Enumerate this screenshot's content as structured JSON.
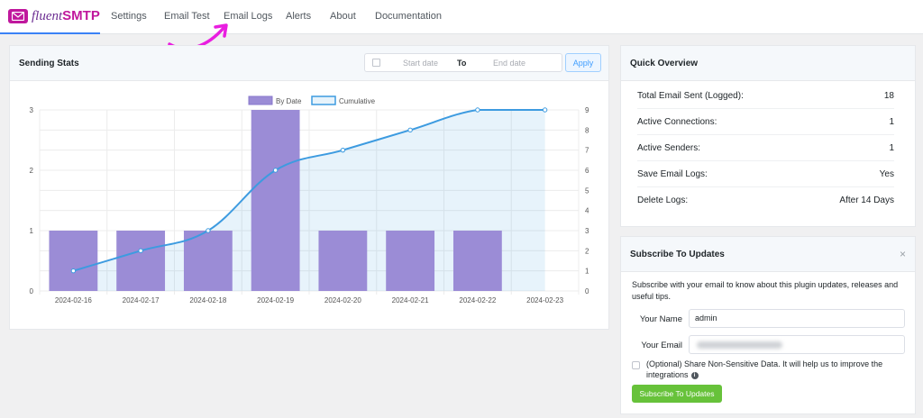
{
  "brand": {
    "name_light": "fluent",
    "name_bold": "SMTP",
    "color": "#c0189d"
  },
  "nav": {
    "items": [
      {
        "label": "Settings"
      },
      {
        "label": "Email Test"
      },
      {
        "label": "Email Logs"
      },
      {
        "label": "Alerts"
      },
      {
        "label": "About"
      },
      {
        "label": "Documentation"
      }
    ]
  },
  "sending_stats": {
    "title": "Sending Stats",
    "date_start_placeholder": "Start date",
    "date_separator": "To",
    "date_end_placeholder": "End date",
    "apply_label": "Apply"
  },
  "chart_data": {
    "type": "bar",
    "categories": [
      "2024-02-16",
      "2024-02-17",
      "2024-02-18",
      "2024-02-19",
      "2024-02-20",
      "2024-02-21",
      "2024-02-22",
      "2024-02-23"
    ],
    "series": [
      {
        "name": "By Date",
        "type": "bar",
        "axis": "left",
        "values": [
          1,
          1,
          1,
          3,
          1,
          1,
          1,
          0
        ],
        "color": "#9b8cd6"
      },
      {
        "name": "Cumulative",
        "type": "line",
        "axis": "right",
        "values": [
          1,
          2,
          3,
          6,
          7,
          8,
          9,
          9
        ],
        "color": "#3d9be0"
      }
    ],
    "ylim_left": [
      0,
      3
    ],
    "yticks_left": [
      "0",
      "1",
      "2",
      "3"
    ],
    "ylim_right": [
      0,
      9
    ],
    "yticks_right": [
      "0",
      "1",
      "2",
      "3",
      "4",
      "5",
      "6",
      "7",
      "8",
      "9"
    ],
    "legend_position": "top",
    "grid": true
  },
  "quick_overview": {
    "title": "Quick Overview",
    "rows": [
      {
        "label": "Total Email Sent (Logged):",
        "value": "18"
      },
      {
        "label": "Active Connections:",
        "value": "1"
      },
      {
        "label": "Active Senders:",
        "value": "1"
      },
      {
        "label": "Save Email Logs:",
        "value": "Yes"
      },
      {
        "label": "Delete Logs:",
        "value": "After 14 Days"
      }
    ]
  },
  "subscribe": {
    "title": "Subscribe To Updates",
    "close_icon": "×",
    "description": "Subscribe with your email to know about this plugin updates, releases and useful tips.",
    "name_label": "Your Name",
    "name_value": "admin",
    "email_label": "Your Email",
    "share_label": "(Optional) Share Non-Sensitive Data. It will help us to improve the integrations",
    "button_label": "Subscribe To Updates"
  }
}
